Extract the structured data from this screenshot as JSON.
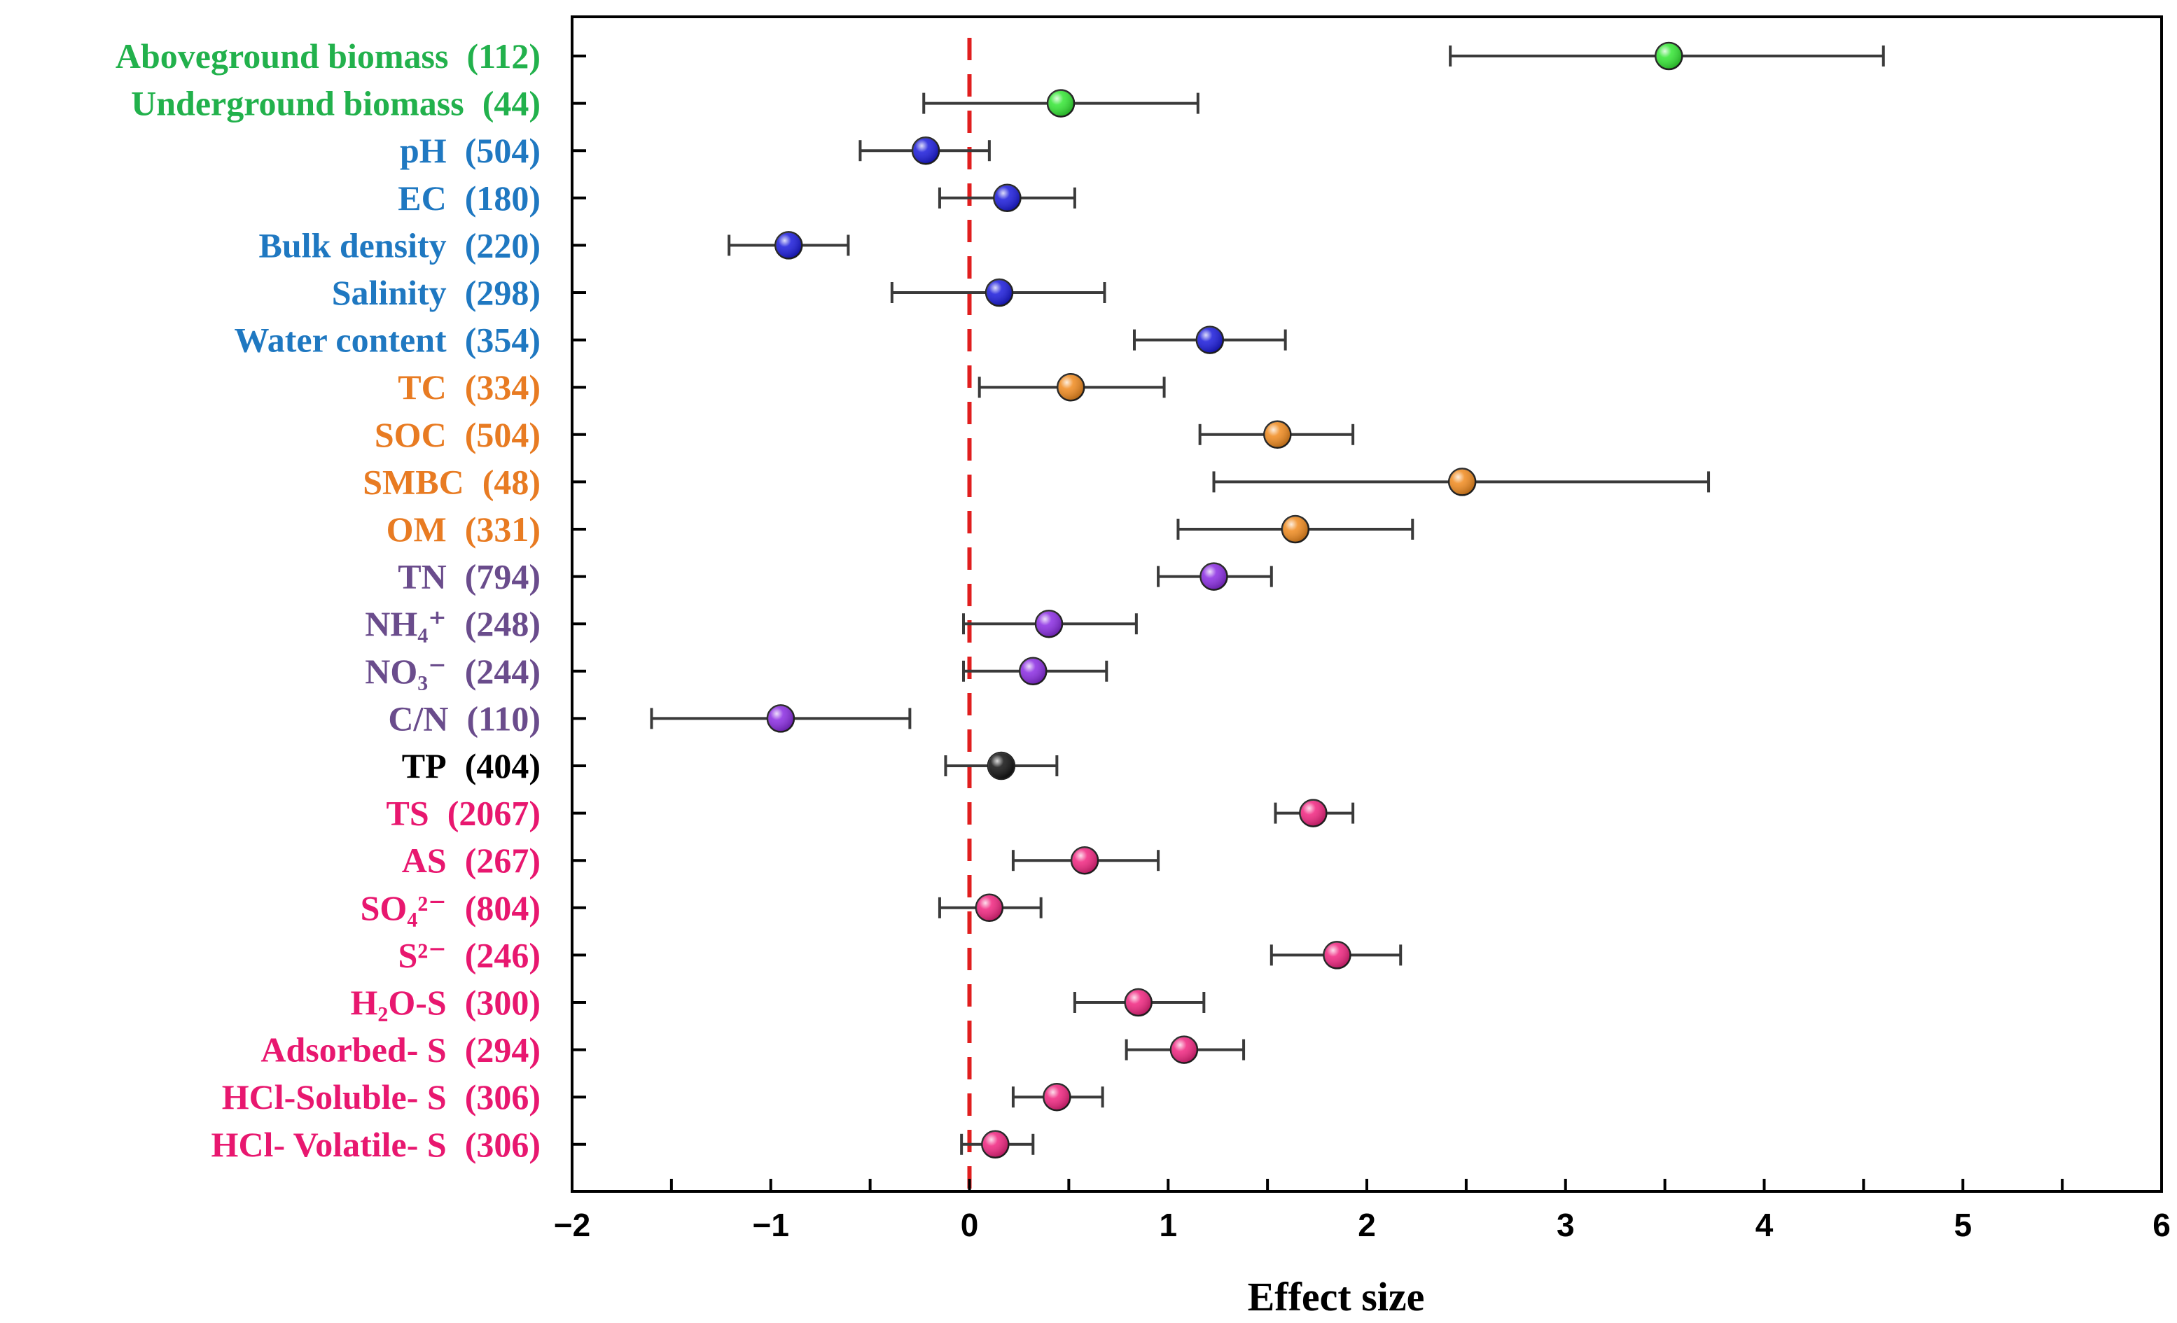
{
  "chart_data": {
    "type": "forest",
    "xlabel": "Effect size",
    "xlim": [
      -2,
      6
    ],
    "xticks": [
      "−2",
      "−1",
      "0",
      "1",
      "2",
      "3",
      "4",
      "5",
      "6"
    ],
    "reference_line": 0,
    "colors": {
      "plant": "#22b14c",
      "physical": "#1f78c1",
      "carbon": "#e87b22",
      "nitrogen": "#6a4c8c",
      "phosphorus": "#000000",
      "sulfur": "#e8176f"
    },
    "rows": [
      {
        "label": "Aboveground biomass",
        "n": "(112)",
        "group": "plant",
        "marker": "#33e633",
        "mean": 3.52,
        "lo": 2.42,
        "hi": 4.6
      },
      {
        "label": "Underground biomass",
        "n": "(44)",
        "group": "plant",
        "marker": "#33e633",
        "mean": 0.46,
        "lo": -0.23,
        "hi": 1.15
      },
      {
        "label": "pH",
        "n": "(504)",
        "group": "physical",
        "marker": "#1a1adb",
        "mean": -0.22,
        "lo": -0.55,
        "hi": 0.1
      },
      {
        "label": "EC",
        "n": "(180)",
        "group": "physical",
        "marker": "#1a1adb",
        "mean": 0.19,
        "lo": -0.15,
        "hi": 0.53
      },
      {
        "label": "Bulk density",
        "n": "(220)",
        "group": "physical",
        "marker": "#1a1adb",
        "mean": -0.91,
        "lo": -1.21,
        "hi": -0.61
      },
      {
        "label": "Salinity",
        "n": "(298)",
        "group": "physical",
        "marker": "#1a1adb",
        "mean": 0.15,
        "lo": -0.39,
        "hi": 0.68
      },
      {
        "label": "Water content",
        "n": "(354)",
        "group": "physical",
        "marker": "#1a1adb",
        "mean": 1.21,
        "lo": 0.83,
        "hi": 1.59
      },
      {
        "label": "TC",
        "n": "(334)",
        "group": "carbon",
        "marker": "#f08a1e",
        "mean": 0.51,
        "lo": 0.05,
        "hi": 0.98
      },
      {
        "label": "SOC",
        "n": "(504)",
        "group": "carbon",
        "marker": "#f08a1e",
        "mean": 1.55,
        "lo": 1.16,
        "hi": 1.93
      },
      {
        "label": "SMBC",
        "n": "(48)",
        "group": "carbon",
        "marker": "#f08a1e",
        "mean": 2.48,
        "lo": 1.23,
        "hi": 3.72
      },
      {
        "label": "OM",
        "n": "(331)",
        "group": "carbon",
        "marker": "#f08a1e",
        "mean": 1.64,
        "lo": 1.05,
        "hi": 2.23
      },
      {
        "label": "TN",
        "n": "(794)",
        "group": "nitrogen",
        "marker": "#8a2be2",
        "mean": 1.23,
        "lo": 0.95,
        "hi": 1.52
      },
      {
        "label": "NH₄⁺",
        "n": "(248)",
        "group": "nitrogen",
        "marker": "#8a2be2",
        "mean": 0.4,
        "lo": -0.03,
        "hi": 0.84
      },
      {
        "label": "NO₃⁻",
        "n": "(244)",
        "group": "nitrogen",
        "marker": "#8a2be2",
        "mean": 0.32,
        "lo": -0.03,
        "hi": 0.69
      },
      {
        "label": "C/N",
        "n": "(110)",
        "group": "nitrogen",
        "marker": "#8a2be2",
        "mean": -0.95,
        "lo": -1.6,
        "hi": -0.3
      },
      {
        "label": "TP",
        "n": "(404)",
        "group": "phosphorus",
        "marker": "#111111",
        "mean": 0.16,
        "lo": -0.12,
        "hi": 0.44
      },
      {
        "label": "TS",
        "n": "(2067)",
        "group": "sulfur",
        "marker": "#f0247f",
        "mean": 1.73,
        "lo": 1.54,
        "hi": 1.93
      },
      {
        "label": "AS",
        "n": "(267)",
        "group": "sulfur",
        "marker": "#f0247f",
        "mean": 0.58,
        "lo": 0.22,
        "hi": 0.95
      },
      {
        "label": "SO₄²⁻",
        "n": "(804)",
        "group": "sulfur",
        "marker": "#f0247f",
        "mean": 0.1,
        "lo": -0.15,
        "hi": 0.36
      },
      {
        "label": "S²⁻",
        "n": "(246)",
        "group": "sulfur",
        "marker": "#f0247f",
        "mean": 1.85,
        "lo": 1.52,
        "hi": 2.17
      },
      {
        "label": "H₂O-S",
        "n": "(300)",
        "group": "sulfur",
        "marker": "#f0247f",
        "mean": 0.85,
        "lo": 0.53,
        "hi": 1.18
      },
      {
        "label": "Adsorbed- S",
        "n": "(294)",
        "group": "sulfur",
        "marker": "#f0247f",
        "mean": 1.08,
        "lo": 0.79,
        "hi": 1.38
      },
      {
        "label": "HCl-Soluble- S",
        "n": "(306)",
        "group": "sulfur",
        "marker": "#f0247f",
        "mean": 0.44,
        "lo": 0.22,
        "hi": 0.67
      },
      {
        "label": "HCl- Volatile- S",
        "n": "(306)",
        "group": "sulfur",
        "marker": "#f0247f",
        "mean": 0.13,
        "lo": -0.04,
        "hi": 0.32
      }
    ]
  }
}
